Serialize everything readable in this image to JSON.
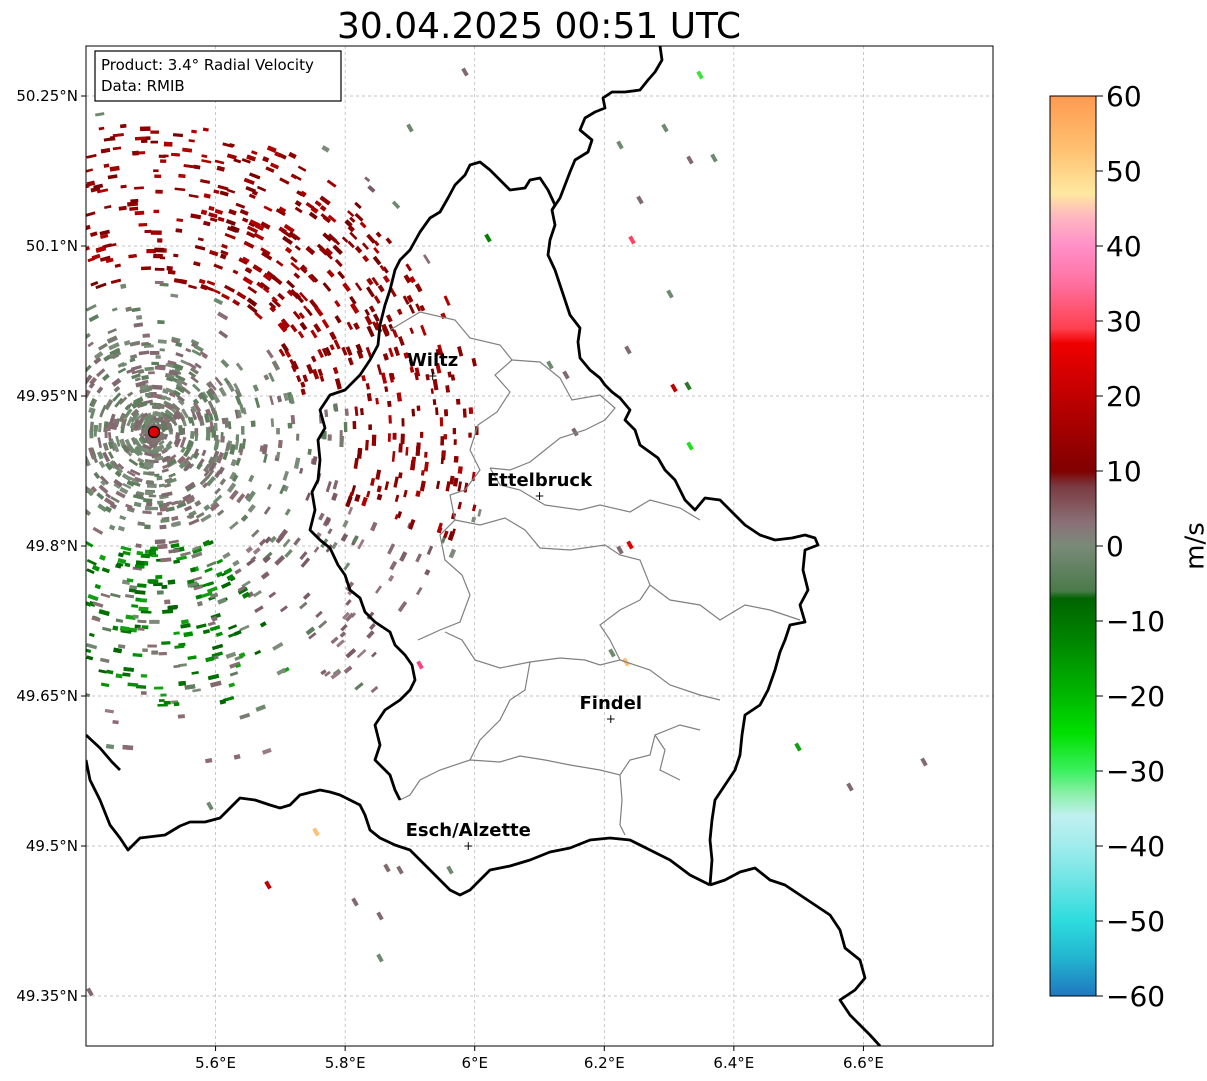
{
  "title": "30.04.2025 00:51 UTC",
  "info_box": {
    "product_line": "Product: 3.4° Radial Velocity",
    "data_line": "Data: RMIB"
  },
  "map": {
    "lon_range": [
      5.4,
      6.8
    ],
    "lat_range": [
      49.3,
      50.3
    ],
    "x_ticks": [
      {
        "value": 5.6,
        "label": "5.6°E"
      },
      {
        "value": 5.8,
        "label": "5.8°E"
      },
      {
        "value": 6.0,
        "label": "6°E"
      },
      {
        "value": 6.2,
        "label": "6.2°E"
      },
      {
        "value": 6.4,
        "label": "6.4°E"
      },
      {
        "value": 6.6,
        "label": "6.6°E"
      }
    ],
    "y_ticks": [
      {
        "value": 50.25,
        "label": "50.25°N"
      },
      {
        "value": 50.1,
        "label": "50.1°N"
      },
      {
        "value": 49.95,
        "label": "49.95°N"
      },
      {
        "value": 49.8,
        "label": "49.8°N"
      },
      {
        "value": 49.65,
        "label": "49.65°N"
      },
      {
        "value": 49.5,
        "label": "49.5°N"
      },
      {
        "value": 49.35,
        "label": "49.35°N"
      }
    ],
    "grid": true,
    "radar_site": {
      "lon": 5.505,
      "lat": 49.914
    },
    "cities": [
      {
        "name": "Wiltz",
        "lon": 5.935,
        "lat": 49.97
      },
      {
        "name": "Ettelbruck",
        "lon": 6.1,
        "lat": 49.85
      },
      {
        "name": "Findel",
        "lon": 6.21,
        "lat": 49.627
      },
      {
        "name": "Esch/Alzette",
        "lon": 5.99,
        "lat": 49.5
      }
    ]
  },
  "colorbar": {
    "label": "m/s",
    "min": -60,
    "max": 60,
    "ticks": [
      {
        "value": 60,
        "label": "60"
      },
      {
        "value": 50,
        "label": "50"
      },
      {
        "value": 40,
        "label": "40"
      },
      {
        "value": 30,
        "label": "30"
      },
      {
        "value": 20,
        "label": "20"
      },
      {
        "value": 10,
        "label": "10"
      },
      {
        "value": 0,
        "label": "0"
      },
      {
        "value": -10,
        "label": "−10"
      },
      {
        "value": -20,
        "label": "−20"
      },
      {
        "value": -30,
        "label": "−30"
      },
      {
        "value": -40,
        "label": "−40"
      },
      {
        "value": -50,
        "label": "−50"
      },
      {
        "value": -60,
        "label": "−60"
      }
    ],
    "stops": [
      {
        "v": -60,
        "c": "#1f78c0"
      },
      {
        "v": -55,
        "c": "#22b4cf"
      },
      {
        "v": -50,
        "c": "#2ddcde"
      },
      {
        "v": -45,
        "c": "#6ae4e4"
      },
      {
        "v": -40,
        "c": "#a0ecec"
      },
      {
        "v": -36,
        "c": "#c0f0f0"
      },
      {
        "v": -33,
        "c": "#8af0a8"
      },
      {
        "v": -30,
        "c": "#3cf060"
      },
      {
        "v": -25,
        "c": "#00e000"
      },
      {
        "v": -20,
        "c": "#00b800"
      },
      {
        "v": -13,
        "c": "#008800"
      },
      {
        "v": -7,
        "c": "#006400"
      },
      {
        "v": -6,
        "c": "#4a7a4a"
      },
      {
        "v": 0,
        "c": "#7a8a78"
      },
      {
        "v": 3,
        "c": "#8a7278"
      },
      {
        "v": 8,
        "c": "#7a3a40"
      },
      {
        "v": 10,
        "c": "#800000"
      },
      {
        "v": 20,
        "c": "#c00000"
      },
      {
        "v": 27,
        "c": "#f00000"
      },
      {
        "v": 29,
        "c": "#ff4050"
      },
      {
        "v": 35,
        "c": "#ff70a0"
      },
      {
        "v": 40,
        "c": "#ff90c8"
      },
      {
        "v": 44,
        "c": "#ffb8c0"
      },
      {
        "v": 47,
        "c": "#ffe8a0"
      },
      {
        "v": 53,
        "c": "#ffc070"
      },
      {
        "v": 60,
        "c": "#ff9a50"
      }
    ]
  },
  "colors": {
    "approaching_green": "#008000",
    "receding_red": "#8b0000",
    "near_zero_gray": "#7a8070",
    "border_black": "#000000",
    "canton_gray": "#808080"
  }
}
